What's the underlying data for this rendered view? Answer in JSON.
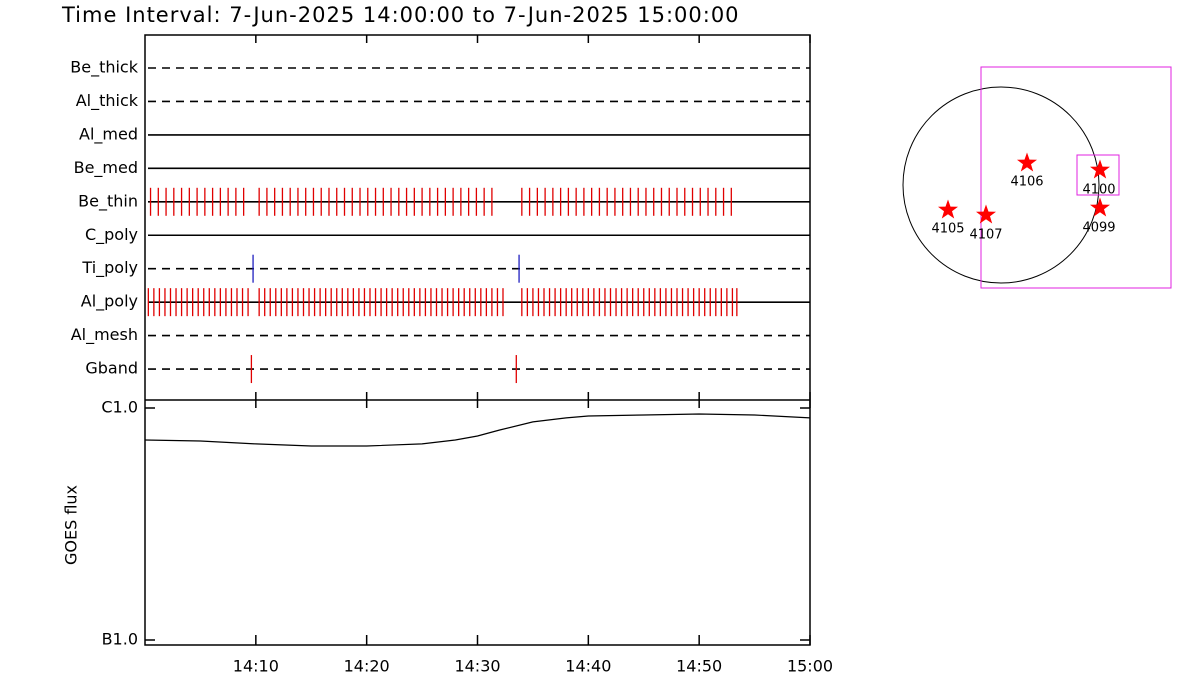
{
  "chart_data": [
    {
      "type": "timeline",
      "title": "Time Interval:  7-Jun-2025 14:00:00 to  7-Jun-2025 15:00:00",
      "xlim": [
        0,
        60
      ],
      "xticks": [
        {
          "value": 10,
          "label": "14:10"
        },
        {
          "value": 20,
          "label": "14:20"
        },
        {
          "value": 30,
          "label": "14:30"
        },
        {
          "value": 40,
          "label": "14:40"
        },
        {
          "value": 50,
          "label": "14:50"
        },
        {
          "value": 60,
          "label": "15:00"
        }
      ],
      "rows": [
        {
          "name": "Be_thick",
          "line": "dashed",
          "times": []
        },
        {
          "name": "Al_thick",
          "line": "dashed",
          "times": []
        },
        {
          "name": "Al_med",
          "line": "solid",
          "times": []
        },
        {
          "name": "Be_med",
          "line": "solid",
          "times": []
        },
        {
          "name": "Be_thin",
          "line": "solid",
          "color": "#e00000",
          "times": [
            0.5,
            1.2,
            1.9,
            2.6,
            3.3,
            4.0,
            4.7,
            5.4,
            6.1,
            6.8,
            7.5,
            8.2,
            8.9,
            10.3,
            11.0,
            11.7,
            12.4,
            13.1,
            13.8,
            14.5,
            15.2,
            15.9,
            16.6,
            17.3,
            18.0,
            18.7,
            19.4,
            20.1,
            20.8,
            21.5,
            22.2,
            22.9,
            23.6,
            24.3,
            25.0,
            25.7,
            26.4,
            27.1,
            27.8,
            28.5,
            29.2,
            29.9,
            30.6,
            31.3,
            34.0,
            34.7,
            35.4,
            36.1,
            36.8,
            37.5,
            38.2,
            38.9,
            39.6,
            40.3,
            41.0,
            41.7,
            42.4,
            43.1,
            43.8,
            44.5,
            45.2,
            45.9,
            46.6,
            47.3,
            48.0,
            48.7,
            49.4,
            50.1,
            50.8,
            51.5,
            52.2,
            52.9
          ]
        },
        {
          "name": "C_poly",
          "line": "solid",
          "times": []
        },
        {
          "name": "Ti_poly",
          "line": "dashed",
          "color": "#2020c0",
          "times": [
            9.75,
            33.75
          ]
        },
        {
          "name": "Al_poly",
          "line": "solid",
          "color": "#e00000",
          "times": [
            0.3,
            0.8,
            1.3,
            1.8,
            2.3,
            2.8,
            3.3,
            3.8,
            4.3,
            4.8,
            5.3,
            5.8,
            6.3,
            6.8,
            7.3,
            7.8,
            8.3,
            8.8,
            9.3,
            10.3,
            10.8,
            11.3,
            11.8,
            12.3,
            12.8,
            13.3,
            13.8,
            14.3,
            14.8,
            15.3,
            15.8,
            16.3,
            16.8,
            17.3,
            17.8,
            18.3,
            18.8,
            19.3,
            19.8,
            20.3,
            20.8,
            21.3,
            21.8,
            22.3,
            22.8,
            23.3,
            23.8,
            24.3,
            24.8,
            25.3,
            25.8,
            26.3,
            26.8,
            27.3,
            27.8,
            28.3,
            28.8,
            29.3,
            29.8,
            30.3,
            30.8,
            31.3,
            31.8,
            32.3,
            34.0,
            34.5,
            35.0,
            35.5,
            36.0,
            36.5,
            37.0,
            37.5,
            38.0,
            38.5,
            39.0,
            39.5,
            40.0,
            40.5,
            41.0,
            41.5,
            42.0,
            42.5,
            43.0,
            43.5,
            44.0,
            44.5,
            45.0,
            45.5,
            46.0,
            46.5,
            47.0,
            47.5,
            48.0,
            48.5,
            49.0,
            49.5,
            50.0,
            50.5,
            51.0,
            51.5,
            52.0,
            52.5,
            53.0,
            53.4
          ]
        },
        {
          "name": "Al_mesh",
          "line": "dashed",
          "times": []
        },
        {
          "name": "Gband",
          "line": "dashed",
          "color": "#e00000",
          "times": [
            9.6,
            33.5
          ]
        }
      ]
    },
    {
      "type": "line",
      "y_label": "GOES flux",
      "x": [
        0,
        5,
        10,
        15,
        20,
        25,
        28,
        30,
        32,
        35,
        38,
        40,
        45,
        50,
        55,
        60
      ],
      "values": [
        7.28e-07,
        7.21e-07,
        7e-07,
        6.86e-07,
        6.86e-07,
        7e-07,
        7.28e-07,
        7.57e-07,
        8.04e-07,
        8.71e-07,
        9.06e-07,
        9.24e-07,
        9.33e-07,
        9.42e-07,
        9.33e-07,
        9.06e-07
      ],
      "color": "#000000",
      "xlim": [
        0,
        60
      ],
      "ylim": [
        1e-07,
        1e-06
      ],
      "log_scale": true,
      "yticks": [
        {
          "value": 1e-07,
          "label": "B1.0"
        },
        {
          "value": 1e-06,
          "label": "C1.0"
        }
      ]
    }
  ],
  "map": {
    "regions": [
      "4105",
      "4107",
      "4106",
      "4100",
      "4099"
    ]
  }
}
